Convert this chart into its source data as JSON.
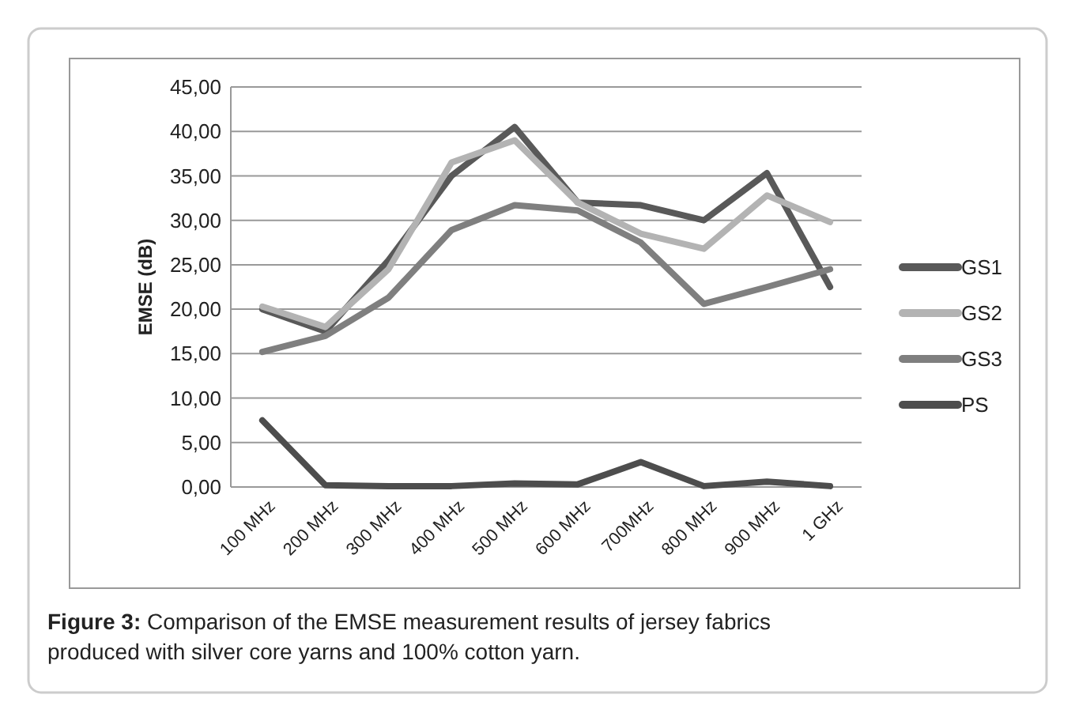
{
  "chart_data": {
    "type": "line",
    "ylabel": "EMSE (dB)",
    "categories": [
      "100 MHz",
      "200 MHz",
      "300 MHz",
      "400 MHz",
      "500 MHz",
      "600 MHz",
      "700MHz",
      "800 MHz",
      "900 MHz",
      "1 GHz"
    ],
    "series": [
      {
        "name": "GS1",
        "color": "#595959",
        "values": [
          20.0,
          17.5,
          25.5,
          35.0,
          40.5,
          32.0,
          31.7,
          30.0,
          35.3,
          22.5
        ]
      },
      {
        "name": "GS2",
        "color": "#b3b3b3",
        "values": [
          20.3,
          18.0,
          24.5,
          36.5,
          39.0,
          32.0,
          28.5,
          26.8,
          32.8,
          29.8
        ]
      },
      {
        "name": "GS3",
        "color": "#7f7f7f",
        "values": [
          15.2,
          17.0,
          21.3,
          28.9,
          31.7,
          31.1,
          27.5,
          20.6,
          22.5,
          24.5
        ]
      },
      {
        "name": "PS",
        "color": "#4d4d4d",
        "values": [
          7.5,
          0.2,
          0.1,
          0.1,
          0.4,
          0.3,
          2.8,
          0.1,
          0.6,
          0.1
        ]
      }
    ],
    "ylim": [
      0,
      45
    ],
    "yticks": [
      {
        "value": 0,
        "label": "0,00"
      },
      {
        "value": 5,
        "label": "5,00"
      },
      {
        "value": 10,
        "label": "10,00"
      },
      {
        "value": 15,
        "label": "15,00"
      },
      {
        "value": 20,
        "label": "20,00"
      },
      {
        "value": 25,
        "label": "25,00"
      },
      {
        "value": 30,
        "label": "30,00"
      },
      {
        "value": 35,
        "label": "35,00"
      },
      {
        "value": 40,
        "label": "40,00"
      },
      {
        "value": 45,
        "label": "45,00"
      }
    ],
    "grid": "y",
    "legend": "right",
    "marker": "none",
    "line_style": "solid",
    "annotations": [
      "Figure 3: Comparison of the EMSE measurement results of  jersey fabrics produced with silver core yarns and 100% cotton yarn."
    ]
  }
}
